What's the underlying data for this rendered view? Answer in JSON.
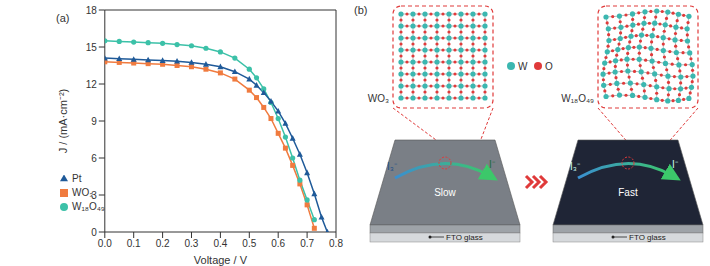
{
  "chart_data": {
    "type": "line",
    "title": "(a)",
    "x_label": "Voltage / V",
    "y_label": "J / (mA·cm⁻²)",
    "x": [
      0,
      0.05,
      0.1,
      0.15,
      0.2,
      0.25,
      0.3,
      0.35,
      0.4,
      0.45,
      0.5,
      0.525,
      0.55,
      0.575,
      0.6,
      0.625,
      0.65,
      0.675,
      0.7,
      0.725,
      0.75,
      0.77
    ],
    "series": [
      {
        "name": "WO₃",
        "color": "#f07b3f",
        "marker": "square",
        "values": [
          13.8,
          13.75,
          13.7,
          13.65,
          13.6,
          13.5,
          13.4,
          13.2,
          12.9,
          12.4,
          11.5,
          10.9,
          10.1,
          9.2,
          8.0,
          6.8,
          5.4,
          3.9,
          2.2,
          0.3,
          null,
          null
        ]
      },
      {
        "name": "W₁₈O₄₉",
        "color": "#3cc1a8",
        "marker": "circle",
        "values": [
          15.5,
          15.45,
          15.4,
          15.35,
          15.3,
          15.2,
          15.1,
          14.9,
          14.6,
          14.1,
          13.2,
          12.5,
          11.6,
          10.5,
          9.2,
          7.7,
          6.0,
          4.2,
          2.6,
          1.0,
          null,
          null
        ]
      },
      {
        "name": "Pt",
        "color": "#1f5a99",
        "marker": "triangle",
        "values": [
          14.1,
          14.05,
          14.0,
          13.95,
          13.9,
          13.85,
          13.75,
          13.6,
          13.4,
          13.0,
          12.4,
          11.9,
          11.3,
          10.6,
          9.8,
          8.8,
          7.6,
          6.3,
          4.8,
          3.1,
          1.2,
          0.0
        ]
      }
    ],
    "xlim": [
      0,
      0.8
    ],
    "xticks": [
      {
        "value": 0,
        "label": "0.0"
      },
      0.1,
      0.2,
      0.3,
      0.4,
      0.5,
      0.6,
      0.7,
      0.8
    ],
    "ylim": [
      0,
      18
    ],
    "yticks": [
      0,
      3,
      6,
      9,
      12,
      15,
      18
    ],
    "grid": false,
    "legend": "lower left"
  },
  "diagram": {
    "label": "(b)",
    "left": {
      "material": "WO₃",
      "speed": "Slow"
    },
    "right": {
      "material": "W₁₈O₄₉",
      "speed": "Fast"
    },
    "elements": [
      "W",
      "O"
    ],
    "reactant": "I₃⁻",
    "product": "I⁻",
    "substrate": "FTO glass"
  }
}
